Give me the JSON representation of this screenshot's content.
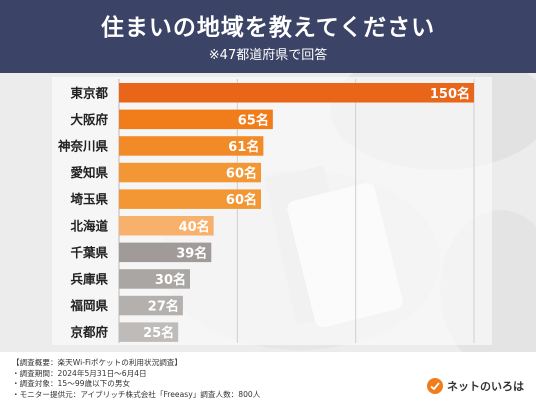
{
  "header": {
    "title": "住まいの地域を教えてください",
    "subtitle": "※47都道府県で回答"
  },
  "chart_data": {
    "type": "bar",
    "orientation": "horizontal",
    "categories": [
      "東京都",
      "大阪府",
      "神奈川県",
      "愛知県",
      "埼玉県",
      "北海道",
      "千葉県",
      "兵庫県",
      "福岡県",
      "京都府"
    ],
    "values": [
      150,
      65,
      61,
      60,
      60,
      40,
      39,
      30,
      27,
      25
    ],
    "value_labels": [
      "150名",
      "65名",
      "61名",
      "60名",
      "60名",
      "40名",
      "39名",
      "30名",
      "27名",
      "25名"
    ],
    "bar_colors": [
      "#e8651a",
      "#f07d1a",
      "#f28a27",
      "#f39634",
      "#f39634",
      "#f8b16c",
      "#a09b99",
      "#aaa6a4",
      "#b4b0ae",
      "#bebbb9"
    ],
    "x_ticks": [
      50,
      100,
      150
    ],
    "xlim": [
      0,
      150
    ],
    "grid": true
  },
  "footer": {
    "notes": [
      "【調査概要：楽天Wi-Fiポケットの利用状況調査】",
      "・調査期間：2024年5月31日～6月4日",
      "・調査対象：15～99歳以下の男女",
      "・モニター提供元：アイブリッチ株式会社「Freeasy」調査人数：800人"
    ],
    "brand": "ネットのいろは"
  },
  "colors": {
    "header_bg": "#3b4366",
    "brand_orange": "#f07d1a"
  }
}
